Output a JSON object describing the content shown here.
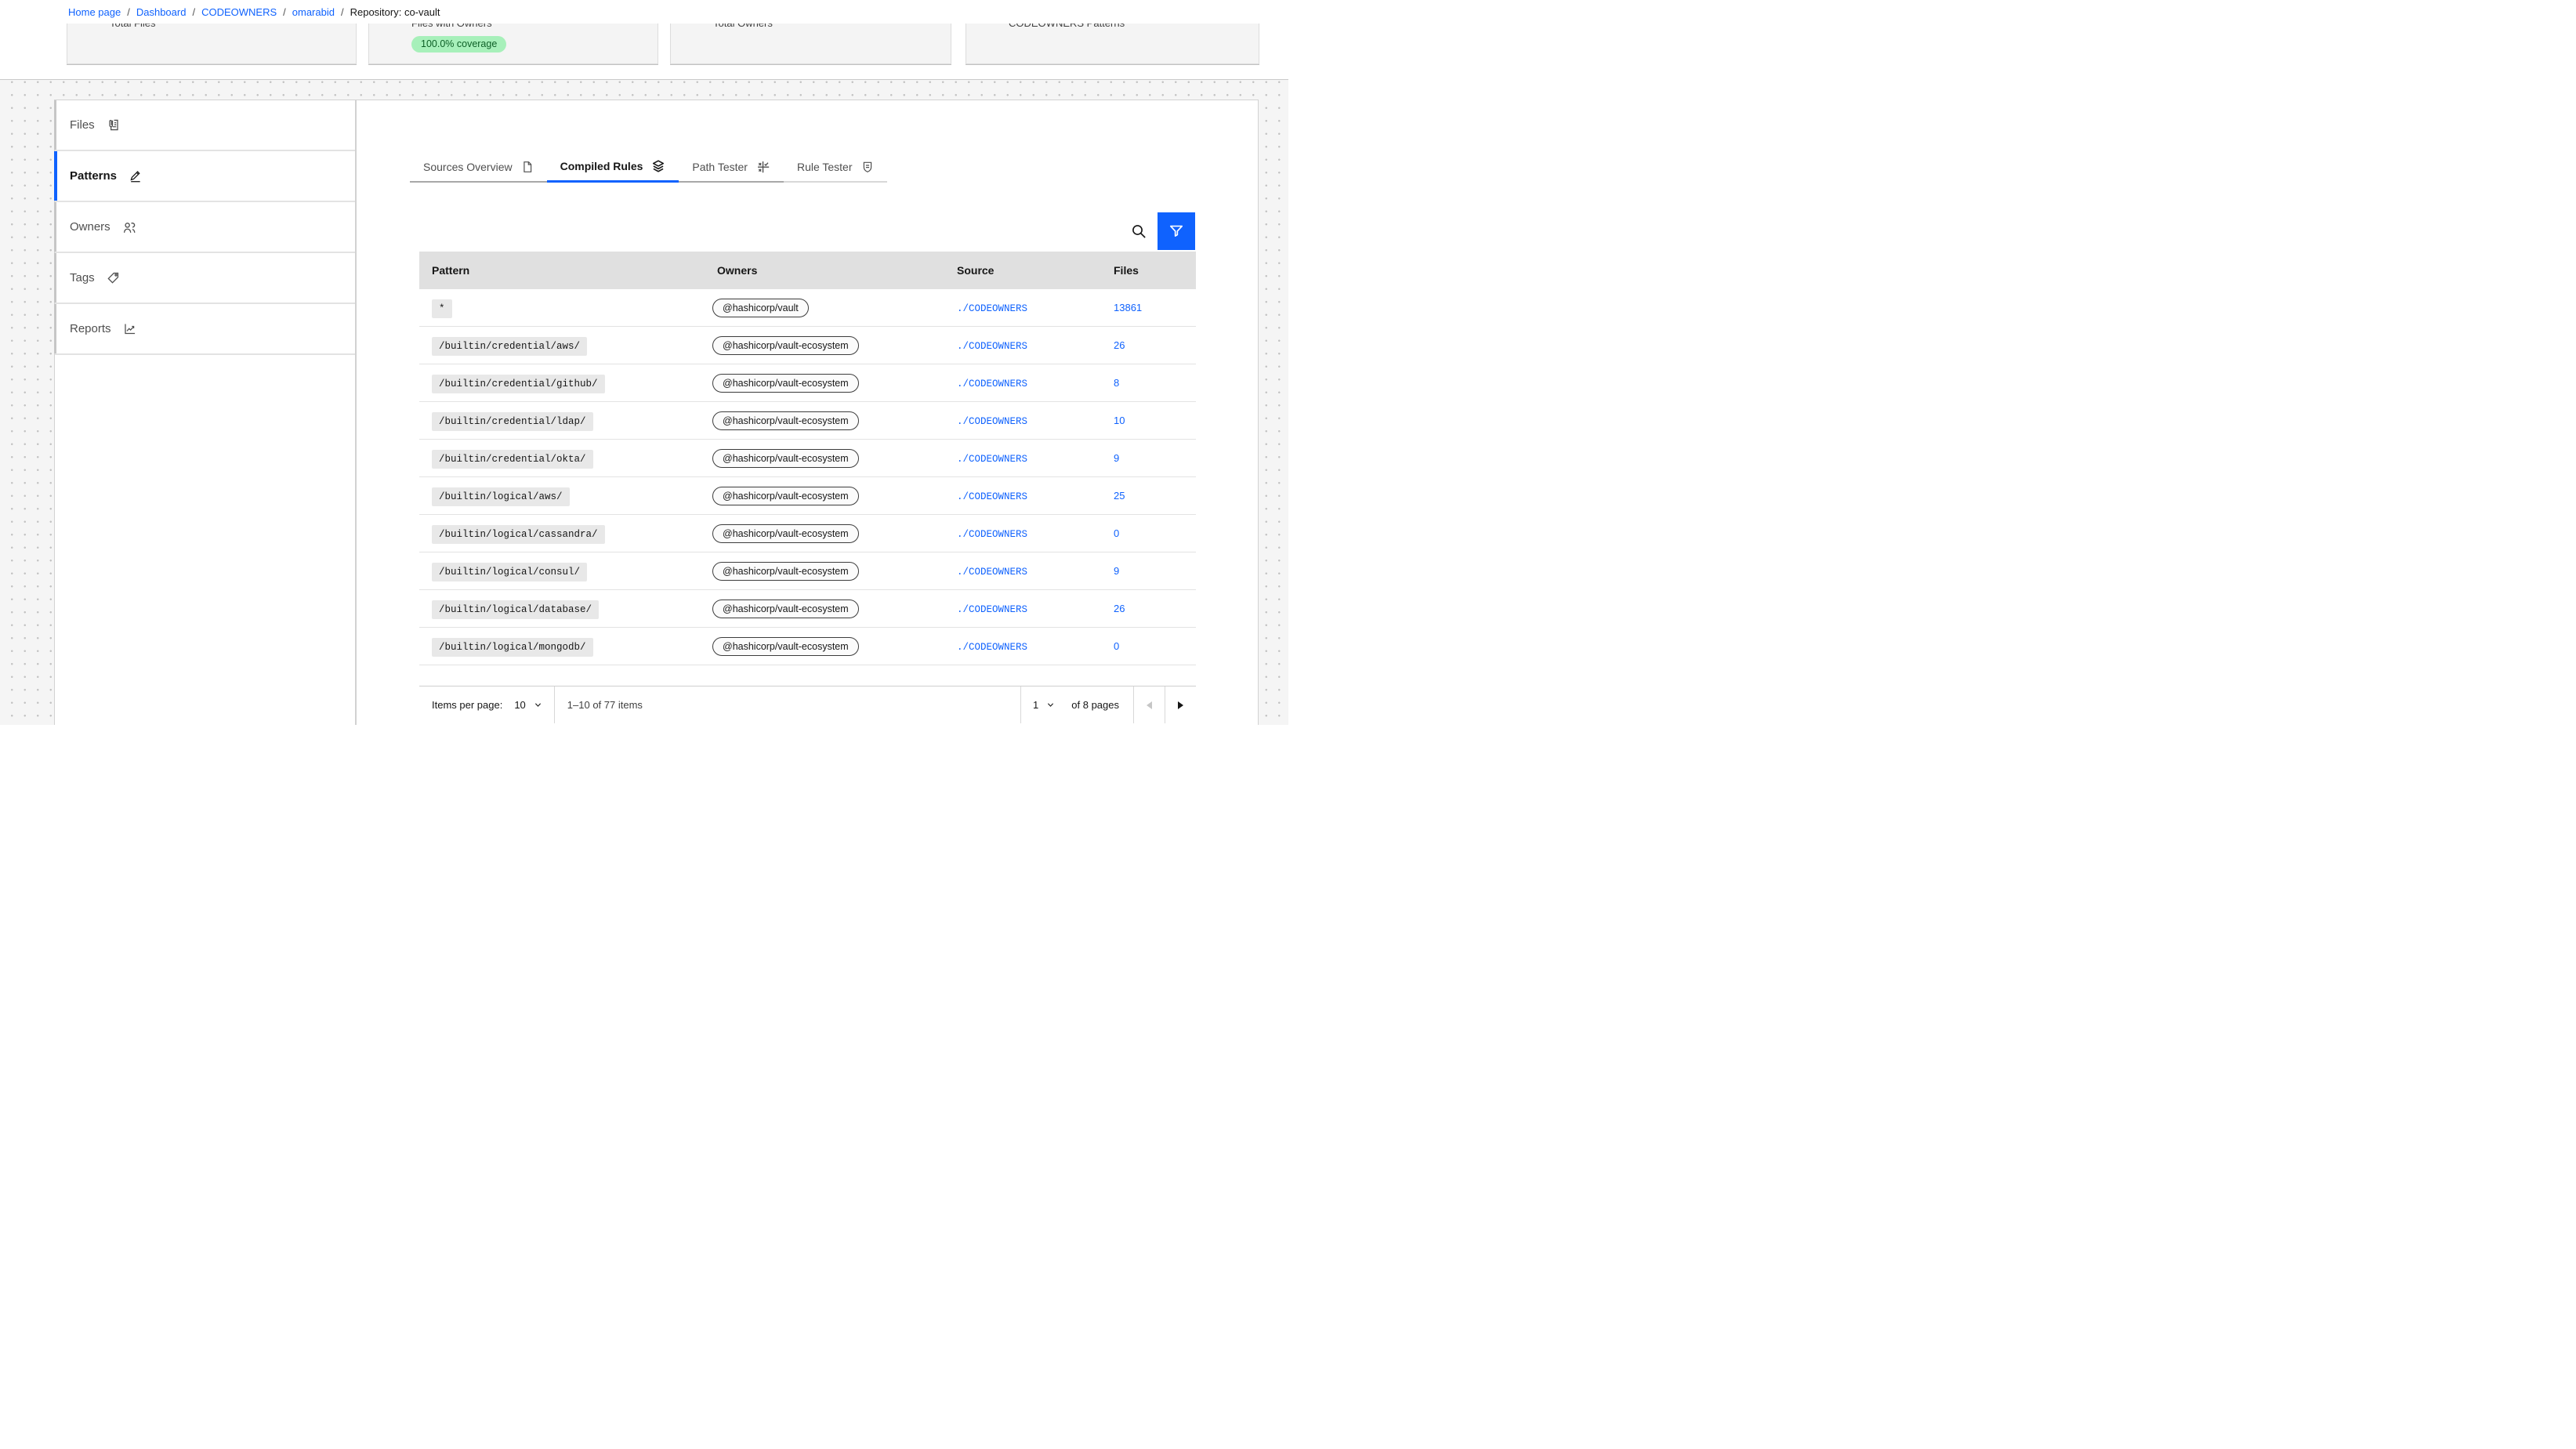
{
  "breadcrumb": {
    "separator": "/",
    "items": [
      {
        "label": "Home page",
        "link": true
      },
      {
        "label": "Dashboard",
        "link": true
      },
      {
        "label": "CODEOWNERS",
        "link": true
      },
      {
        "label": "omarabid",
        "link": true
      },
      {
        "label": "Repository: co-vault",
        "link": false
      }
    ]
  },
  "cards": {
    "items": [
      {
        "title": "Total Files"
      },
      {
        "title": "Files with Owners",
        "badge": "100.0% coverage"
      },
      {
        "title": "Total Owners"
      },
      {
        "title": "CODEOWNERS Patterns"
      }
    ]
  },
  "sidebar": {
    "items": [
      {
        "label": "Files",
        "icon": "files-icon",
        "selected": false
      },
      {
        "label": "Patterns",
        "icon": "edit-icon",
        "selected": true
      },
      {
        "label": "Owners",
        "icon": "group-icon",
        "selected": false
      },
      {
        "label": "Tags",
        "icon": "tag-icon",
        "selected": false
      },
      {
        "label": "Reports",
        "icon": "chart-line-icon",
        "selected": false
      }
    ]
  },
  "tabs": {
    "items": [
      {
        "label": "Sources Overview",
        "icon": "document-icon",
        "selected": false,
        "light": false
      },
      {
        "label": "Compiled Rules",
        "icon": "layers-icon",
        "selected": true,
        "light": false
      },
      {
        "label": "Path Tester",
        "icon": "path-tester-icon",
        "selected": false,
        "light": false
      },
      {
        "label": "Rule Tester",
        "icon": "rule-tester-icon",
        "selected": false,
        "light": true
      }
    ]
  },
  "toolbar": {
    "search_icon": "search-icon",
    "filter_icon": "filter-icon",
    "filter_color": "#0f62fe"
  },
  "table": {
    "headers": [
      "Pattern",
      "Owners",
      "Source",
      "Files"
    ],
    "rows": [
      {
        "pattern": "*",
        "owners": "@hashicorp/vault",
        "source": "./CODEOWNERS",
        "files": "13861"
      },
      {
        "pattern": "/builtin/credential/aws/",
        "owners": "@hashicorp/vault-ecosystem",
        "source": "./CODEOWNERS",
        "files": "26"
      },
      {
        "pattern": "/builtin/credential/github/",
        "owners": "@hashicorp/vault-ecosystem",
        "source": "./CODEOWNERS",
        "files": "8"
      },
      {
        "pattern": "/builtin/credential/ldap/",
        "owners": "@hashicorp/vault-ecosystem",
        "source": "./CODEOWNERS",
        "files": "10"
      },
      {
        "pattern": "/builtin/credential/okta/",
        "owners": "@hashicorp/vault-ecosystem",
        "source": "./CODEOWNERS",
        "files": "9"
      },
      {
        "pattern": "/builtin/logical/aws/",
        "owners": "@hashicorp/vault-ecosystem",
        "source": "./CODEOWNERS",
        "files": "25"
      },
      {
        "pattern": "/builtin/logical/cassandra/",
        "owners": "@hashicorp/vault-ecosystem",
        "source": "./CODEOWNERS",
        "files": "0"
      },
      {
        "pattern": "/builtin/logical/consul/",
        "owners": "@hashicorp/vault-ecosystem",
        "source": "./CODEOWNERS",
        "files": "9"
      },
      {
        "pattern": "/builtin/logical/database/",
        "owners": "@hashicorp/vault-ecosystem",
        "source": "./CODEOWNERS",
        "files": "26"
      },
      {
        "pattern": "/builtin/logical/mongodb/",
        "owners": "@hashicorp/vault-ecosystem",
        "source": "./CODEOWNERS",
        "files": "0"
      }
    ]
  },
  "pagination": {
    "items_per_page_label": "Items per page:",
    "page_size": "10",
    "range": "1–10 of 77 items",
    "page": "1",
    "pages_label": "of 8 pages"
  },
  "colors": {
    "accent": "#0f62fe",
    "link": "#0f62fe",
    "coverage_badge_bg": "#a7f0ba",
    "coverage_badge_text": "#0e6027"
  }
}
